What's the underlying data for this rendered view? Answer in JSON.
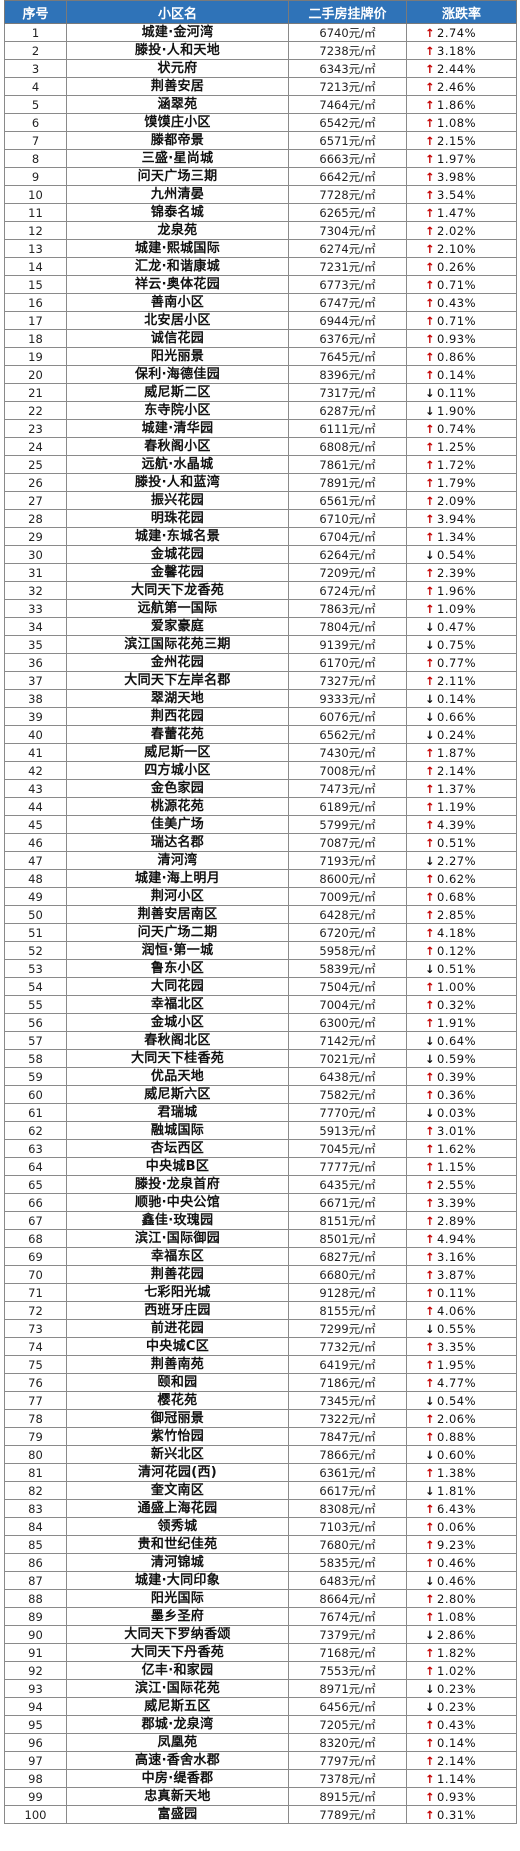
{
  "table": {
    "headers": [
      "序号",
      "小区名",
      "二手房挂牌价",
      "涨跌率"
    ],
    "rows": [
      {
        "no": "1",
        "name": "城建·金河湾",
        "price": "6740元/㎡",
        "dir": "up",
        "pct": "2.74%"
      },
      {
        "no": "2",
        "name": "滕投·人和天地",
        "price": "7238元/㎡",
        "dir": "up",
        "pct": "3.18%"
      },
      {
        "no": "3",
        "name": "状元府",
        "price": "6343元/㎡",
        "dir": "up",
        "pct": "2.44%"
      },
      {
        "no": "4",
        "name": "荆善安居",
        "price": "7213元/㎡",
        "dir": "up",
        "pct": "2.46%"
      },
      {
        "no": "5",
        "name": "涵翠苑",
        "price": "7464元/㎡",
        "dir": "up",
        "pct": "1.86%"
      },
      {
        "no": "6",
        "name": "馍馍庄小区",
        "price": "6542元/㎡",
        "dir": "up",
        "pct": "1.08%"
      },
      {
        "no": "7",
        "name": "滕都帝景",
        "price": "6571元/㎡",
        "dir": "up",
        "pct": "2.15%"
      },
      {
        "no": "8",
        "name": "三盛·星尚城",
        "price": "6663元/㎡",
        "dir": "up",
        "pct": "1.97%"
      },
      {
        "no": "9",
        "name": "问天广场三期",
        "price": "6642元/㎡",
        "dir": "up",
        "pct": "3.98%"
      },
      {
        "no": "10",
        "name": "九州清晏",
        "price": "7728元/㎡",
        "dir": "up",
        "pct": "3.54%"
      },
      {
        "no": "11",
        "name": "锦泰名城",
        "price": "6265元/㎡",
        "dir": "up",
        "pct": "1.47%"
      },
      {
        "no": "12",
        "name": "龙泉苑",
        "price": "7304元/㎡",
        "dir": "up",
        "pct": "2.02%"
      },
      {
        "no": "13",
        "name": "城建·熙城国际",
        "price": "6274元/㎡",
        "dir": "up",
        "pct": "2.10%"
      },
      {
        "no": "14",
        "name": "汇龙·和谐康城",
        "price": "7231元/㎡",
        "dir": "up",
        "pct": "0.26%"
      },
      {
        "no": "15",
        "name": "祥云·奥体花园",
        "price": "6773元/㎡",
        "dir": "up",
        "pct": "0.71%"
      },
      {
        "no": "16",
        "name": "善南小区",
        "price": "6747元/㎡",
        "dir": "up",
        "pct": "0.43%"
      },
      {
        "no": "17",
        "name": "北安居小区",
        "price": "6944元/㎡",
        "dir": "up",
        "pct": "0.71%"
      },
      {
        "no": "18",
        "name": "诚信花园",
        "price": "6376元/㎡",
        "dir": "up",
        "pct": "0.93%"
      },
      {
        "no": "19",
        "name": "阳光丽景",
        "price": "7645元/㎡",
        "dir": "up",
        "pct": "0.86%"
      },
      {
        "no": "20",
        "name": "保利·海德佳园",
        "price": "8396元/㎡",
        "dir": "up",
        "pct": "0.14%"
      },
      {
        "no": "21",
        "name": "威尼斯二区",
        "price": "7317元/㎡",
        "dir": "down",
        "pct": "0.11%"
      },
      {
        "no": "22",
        "name": "东寺院小区",
        "price": "6287元/㎡",
        "dir": "down",
        "pct": "1.90%"
      },
      {
        "no": "23",
        "name": "城建·清华园",
        "price": "6111元/㎡",
        "dir": "up",
        "pct": "0.74%"
      },
      {
        "no": "24",
        "name": "春秋阁小区",
        "price": "6808元/㎡",
        "dir": "up",
        "pct": "1.25%"
      },
      {
        "no": "25",
        "name": "远航·水晶城",
        "price": "7861元/㎡",
        "dir": "up",
        "pct": "1.72%"
      },
      {
        "no": "26",
        "name": "滕投·人和蓝湾",
        "price": "7891元/㎡",
        "dir": "up",
        "pct": "1.79%"
      },
      {
        "no": "27",
        "name": "振兴花园",
        "price": "6561元/㎡",
        "dir": "up",
        "pct": "2.09%"
      },
      {
        "no": "28",
        "name": "明珠花园",
        "price": "6710元/㎡",
        "dir": "up",
        "pct": "3.94%"
      },
      {
        "no": "29",
        "name": "城建·东城名景",
        "price": "6704元/㎡",
        "dir": "up",
        "pct": "1.34%"
      },
      {
        "no": "30",
        "name": "金城花园",
        "price": "6264元/㎡",
        "dir": "down",
        "pct": "0.54%"
      },
      {
        "no": "31",
        "name": "金馨花园",
        "price": "7209元/㎡",
        "dir": "up",
        "pct": "2.39%"
      },
      {
        "no": "32",
        "name": "大同天下龙香苑",
        "price": "6724元/㎡",
        "dir": "up",
        "pct": "1.96%"
      },
      {
        "no": "33",
        "name": "远航第一国际",
        "price": "7863元/㎡",
        "dir": "up",
        "pct": "1.09%"
      },
      {
        "no": "34",
        "name": "爱家豪庭",
        "price": "7804元/㎡",
        "dir": "down",
        "pct": "0.47%"
      },
      {
        "no": "35",
        "name": "滨江国际花苑三期",
        "price": "9139元/㎡",
        "dir": "down",
        "pct": "0.75%"
      },
      {
        "no": "36",
        "name": "金州花园",
        "price": "6170元/㎡",
        "dir": "up",
        "pct": "0.77%"
      },
      {
        "no": "37",
        "name": "大同天下左岸名郡",
        "price": "7327元/㎡",
        "dir": "up",
        "pct": "2.11%"
      },
      {
        "no": "38",
        "name": "翠湖天地",
        "price": "9333元/㎡",
        "dir": "down",
        "pct": "0.14%"
      },
      {
        "no": "39",
        "name": "荆西花园",
        "price": "6076元/㎡",
        "dir": "down",
        "pct": "0.66%"
      },
      {
        "no": "40",
        "name": "春蕾花苑",
        "price": "6562元/㎡",
        "dir": "down",
        "pct": "0.24%"
      },
      {
        "no": "41",
        "name": "威尼斯一区",
        "price": "7430元/㎡",
        "dir": "up",
        "pct": "1.87%"
      },
      {
        "no": "42",
        "name": "四方城小区",
        "price": "7008元/㎡",
        "dir": "up",
        "pct": "2.14%"
      },
      {
        "no": "43",
        "name": "金色家园",
        "price": "7473元/㎡",
        "dir": "up",
        "pct": "1.37%"
      },
      {
        "no": "44",
        "name": "桃源花苑",
        "price": "6189元/㎡",
        "dir": "up",
        "pct": "1.19%"
      },
      {
        "no": "45",
        "name": "佳美广场",
        "price": "5799元/㎡",
        "dir": "up",
        "pct": "4.39%"
      },
      {
        "no": "46",
        "name": "瑞达名郡",
        "price": "7087元/㎡",
        "dir": "up",
        "pct": "0.51%"
      },
      {
        "no": "47",
        "name": "清河湾",
        "price": "7193元/㎡",
        "dir": "down",
        "pct": "2.27%"
      },
      {
        "no": "48",
        "name": "城建·海上明月",
        "price": "8600元/㎡",
        "dir": "up",
        "pct": "0.62%"
      },
      {
        "no": "49",
        "name": "荆河小区",
        "price": "7009元/㎡",
        "dir": "up",
        "pct": "0.68%"
      },
      {
        "no": "50",
        "name": "荆善安居南区",
        "price": "6428元/㎡",
        "dir": "up",
        "pct": "2.85%"
      },
      {
        "no": "51",
        "name": "问天广场二期",
        "price": "6720元/㎡",
        "dir": "up",
        "pct": "4.18%"
      },
      {
        "no": "52",
        "name": "润恒·第一城",
        "price": "5958元/㎡",
        "dir": "up",
        "pct": "0.12%"
      },
      {
        "no": "53",
        "name": "鲁东小区",
        "price": "5839元/㎡",
        "dir": "down",
        "pct": "0.51%"
      },
      {
        "no": "54",
        "name": "大同花园",
        "price": "7504元/㎡",
        "dir": "up",
        "pct": "1.00%"
      },
      {
        "no": "55",
        "name": "幸福北区",
        "price": "7004元/㎡",
        "dir": "up",
        "pct": "0.32%"
      },
      {
        "no": "56",
        "name": "金城小区",
        "price": "6300元/㎡",
        "dir": "up",
        "pct": "1.91%"
      },
      {
        "no": "57",
        "name": "春秋阁北区",
        "price": "7142元/㎡",
        "dir": "down",
        "pct": "0.64%"
      },
      {
        "no": "58",
        "name": "大同天下桂香苑",
        "price": "7021元/㎡",
        "dir": "down",
        "pct": "0.59%"
      },
      {
        "no": "59",
        "name": "优品天地",
        "price": "6438元/㎡",
        "dir": "up",
        "pct": "0.39%"
      },
      {
        "no": "60",
        "name": "威尼斯六区",
        "price": "7582元/㎡",
        "dir": "up",
        "pct": "0.36%"
      },
      {
        "no": "61",
        "name": "君瑞城",
        "price": "7770元/㎡",
        "dir": "down",
        "pct": "0.03%"
      },
      {
        "no": "62",
        "name": "融城国际",
        "price": "5913元/㎡",
        "dir": "up",
        "pct": "3.01%"
      },
      {
        "no": "63",
        "name": "杏坛西区",
        "price": "7045元/㎡",
        "dir": "up",
        "pct": "1.62%"
      },
      {
        "no": "64",
        "name": "中央城B区",
        "price": "7777元/㎡",
        "dir": "up",
        "pct": "1.15%"
      },
      {
        "no": "65",
        "name": "滕投·龙泉首府",
        "price": "6435元/㎡",
        "dir": "up",
        "pct": "2.55%"
      },
      {
        "no": "66",
        "name": "顺驰·中央公馆",
        "price": "6671元/㎡",
        "dir": "up",
        "pct": "3.39%"
      },
      {
        "no": "67",
        "name": "鑫佳·玫瑰园",
        "price": "8151元/㎡",
        "dir": "up",
        "pct": "2.89%"
      },
      {
        "no": "68",
        "name": "滨江·国际御园",
        "price": "8501元/㎡",
        "dir": "up",
        "pct": "4.94%"
      },
      {
        "no": "69",
        "name": "幸福东区",
        "price": "6827元/㎡",
        "dir": "up",
        "pct": "3.16%"
      },
      {
        "no": "70",
        "name": "荆善花园",
        "price": "6680元/㎡",
        "dir": "up",
        "pct": "3.87%"
      },
      {
        "no": "71",
        "name": "七彩阳光城",
        "price": "9128元/㎡",
        "dir": "up",
        "pct": "0.11%"
      },
      {
        "no": "72",
        "name": "西班牙庄园",
        "price": "8155元/㎡",
        "dir": "up",
        "pct": "4.06%"
      },
      {
        "no": "73",
        "name": "前进花园",
        "price": "7299元/㎡",
        "dir": "down",
        "pct": "0.55%"
      },
      {
        "no": "74",
        "name": "中央城C区",
        "price": "7732元/㎡",
        "dir": "up",
        "pct": "3.35%"
      },
      {
        "no": "75",
        "name": "荆善南苑",
        "price": "6419元/㎡",
        "dir": "up",
        "pct": "1.95%"
      },
      {
        "no": "76",
        "name": "颐和园",
        "price": "7186元/㎡",
        "dir": "up",
        "pct": "4.77%"
      },
      {
        "no": "77",
        "name": "樱花苑",
        "price": "7345元/㎡",
        "dir": "down",
        "pct": "0.54%"
      },
      {
        "no": "78",
        "name": "御冠丽景",
        "price": "7322元/㎡",
        "dir": "up",
        "pct": "2.06%"
      },
      {
        "no": "79",
        "name": "紫竹怡园",
        "price": "7847元/㎡",
        "dir": "up",
        "pct": "0.88%"
      },
      {
        "no": "80",
        "name": "新兴北区",
        "price": "7866元/㎡",
        "dir": "down",
        "pct": "0.60%"
      },
      {
        "no": "81",
        "name": "清河花园(西)",
        "price": "6361元/㎡",
        "dir": "up",
        "pct": "1.38%"
      },
      {
        "no": "82",
        "name": "奎文南区",
        "price": "6617元/㎡",
        "dir": "down",
        "pct": "1.81%"
      },
      {
        "no": "83",
        "name": "通盛上海花园",
        "price": "8308元/㎡",
        "dir": "up",
        "pct": "6.43%"
      },
      {
        "no": "84",
        "name": "领秀城",
        "price": "7103元/㎡",
        "dir": "up",
        "pct": "0.06%"
      },
      {
        "no": "85",
        "name": "贵和世纪佳苑",
        "price": "7680元/㎡",
        "dir": "up",
        "pct": "9.23%"
      },
      {
        "no": "86",
        "name": "清河锦城",
        "price": "5835元/㎡",
        "dir": "up",
        "pct": "0.46%"
      },
      {
        "no": "87",
        "name": "城建·大同印象",
        "price": "6483元/㎡",
        "dir": "down",
        "pct": "0.46%"
      },
      {
        "no": "88",
        "name": "阳光国际",
        "price": "8664元/㎡",
        "dir": "up",
        "pct": "2.80%"
      },
      {
        "no": "89",
        "name": "墨乡圣府",
        "price": "7674元/㎡",
        "dir": "up",
        "pct": "1.08%"
      },
      {
        "no": "90",
        "name": "大同天下罗纳香颂",
        "price": "7379元/㎡",
        "dir": "down",
        "pct": "2.86%"
      },
      {
        "no": "91",
        "name": "大同天下丹香苑",
        "price": "7168元/㎡",
        "dir": "up",
        "pct": "1.82%"
      },
      {
        "no": "92",
        "name": "亿丰·和家园",
        "price": "7553元/㎡",
        "dir": "up",
        "pct": "1.02%"
      },
      {
        "no": "93",
        "name": "滨江·国际花苑",
        "price": "8971元/㎡",
        "dir": "down",
        "pct": "0.23%"
      },
      {
        "no": "94",
        "name": "威尼斯五区",
        "price": "6456元/㎡",
        "dir": "down",
        "pct": "0.23%"
      },
      {
        "no": "95",
        "name": "郡城·龙泉湾",
        "price": "7205元/㎡",
        "dir": "up",
        "pct": "0.43%"
      },
      {
        "no": "96",
        "name": "凤凰苑",
        "price": "8320元/㎡",
        "dir": "up",
        "pct": "0.14%"
      },
      {
        "no": "97",
        "name": "高速·香舍水郡",
        "price": "7797元/㎡",
        "dir": "up",
        "pct": "2.14%"
      },
      {
        "no": "98",
        "name": "中房·缇香郡",
        "price": "7378元/㎡",
        "dir": "up",
        "pct": "1.14%"
      },
      {
        "no": "99",
        "name": "忠真新天地",
        "price": "8915元/㎡",
        "dir": "up",
        "pct": "0.93%"
      },
      {
        "no": "100",
        "name": "富盛园",
        "price": "7789元/㎡",
        "dir": "up",
        "pct": "0.31%"
      }
    ]
  },
  "arrows": {
    "up": "↑",
    "down": "↓"
  },
  "colors": {
    "header_bg": "#2f73b8",
    "header_text": "#ffffff",
    "up_arrow": "#c40000",
    "down_arrow": "#111111",
    "grid": "#8a8a8a"
  }
}
